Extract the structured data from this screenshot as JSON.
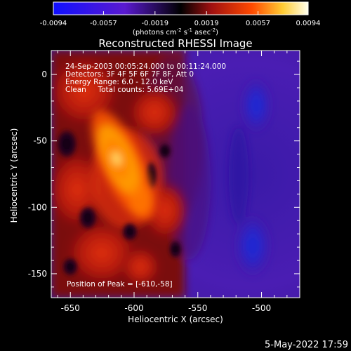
{
  "colorbar": {
    "ticks": [
      "-0.0094",
      "-0.0057",
      "-0.0019",
      "0.0019",
      "0.0057",
      "0.0094"
    ],
    "tick_values": [
      -0.0094,
      -0.0057,
      -0.0019,
      0.0019,
      0.0057,
      0.0094
    ],
    "units_main": "(photons cm",
    "units_exp1": "-2",
    "units_mid": " s",
    "units_exp2": "-1",
    "units_tail": " asec",
    "units_exp3": "-2",
    "units_close": ")",
    "colors": [
      "#1010ff",
      "#5a1ad0",
      "#000000",
      "#a01010",
      "#ff4a00",
      "#ffcc33",
      "#ffffee"
    ]
  },
  "image": {
    "title": "Reconstructed RHESSI Image",
    "info_line1": "24-Sep-2003 00:05:24.000 to 00:11:24.000",
    "info_line2": "Detectors: 3F 4F 5F 6F 7F 8F, Att 0",
    "info_line3": "Energy Range: 6.0 - 12.0 keV",
    "info_line4": "Clean     Total counts: 5.69E+04",
    "peak_text": "Position of Peak = [-610,-58]",
    "xlabel": "Heliocentric X (arcsec)",
    "ylabel": "Heliocentric Y (arcsec)",
    "x_ticks": [
      "-650",
      "-600",
      "-550",
      "-500"
    ],
    "x_tick_values": [
      -650,
      -600,
      -550,
      -500
    ],
    "y_ticks": [
      "0",
      "-50",
      "-100",
      "-150"
    ],
    "y_tick_values": [
      0,
      -50,
      -100,
      -150
    ],
    "xlim": [
      -665,
      -470
    ],
    "ylim": [
      -168,
      18
    ],
    "peak": [
      -610,
      -58
    ]
  },
  "footer": {
    "timestamp": "5-May-2022 17:59"
  }
}
